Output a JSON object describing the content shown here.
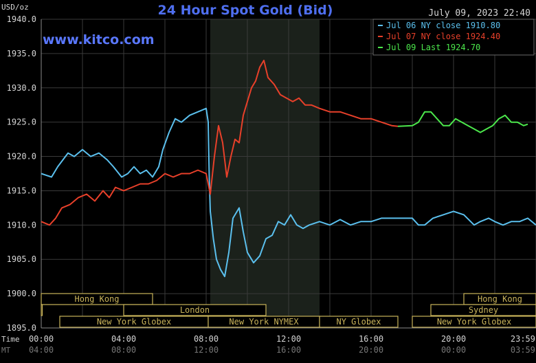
{
  "chart_data": {
    "type": "line",
    "title": "24 Hour Spot Gold (Bid)",
    "unit_label": "USD/oz",
    "watermark": "www.kitco.com",
    "timestamp": "July 09, 2023 22:40",
    "ylim": [
      1895,
      1940
    ],
    "y_ticks": [
      "1940.0",
      "1935.0",
      "1930.0",
      "1925.0",
      "1920.0",
      "1915.0",
      "1910.0",
      "1905.0",
      "1900.0",
      "1895.0"
    ],
    "xlim": [
      0,
      24
    ],
    "time_row_label": "Time",
    "time_row2_label": "MT",
    "x_ticks": [
      {
        "x": 0,
        "label": "00:00",
        "label2": "04:00"
      },
      {
        "x": 4,
        "label": "04:00",
        "label2": "08:00"
      },
      {
        "x": 8,
        "label": "08:00",
        "label2": "12:00"
      },
      {
        "x": 12,
        "label": "12:00",
        "label2": "16:00"
      },
      {
        "x": 16,
        "label": "16:00",
        "label2": "20:00"
      },
      {
        "x": 20,
        "label": "20:00",
        "label2": "00:00"
      },
      {
        "x": 23.983,
        "label": "23:59",
        "label2": "03:59"
      }
    ],
    "highlight_range": [
      8.2,
      13.5
    ],
    "colors": {
      "jul06": "#5bc0ee",
      "jul07": "#e8402a",
      "jul09": "#4ce84c",
      "grid": "#3a3a3a",
      "axis_text": "#d6d6d6",
      "title": "#4f6ff0",
      "watermark": "#5a78ff",
      "session": "#c9b35a",
      "highlight": "#1b211b"
    },
    "legend_position": "top-right",
    "sessions": [
      {
        "name": "Hong Kong",
        "row": 0,
        "start": 0,
        "end": 5.4
      },
      {
        "name": "Hong Kong",
        "row": 0,
        "start": 20.5,
        "end": 24
      },
      {
        "name": "London",
        "row": 1,
        "start": 0,
        "end": 0.05
      },
      {
        "name": "London",
        "row": 1,
        "start": 4,
        "end": 10.9
      },
      {
        "name": "Sydney",
        "row": 1,
        "start": 18.9,
        "end": 24
      },
      {
        "name": "New York Globex",
        "row": 2,
        "start": 0.9,
        "end": 8.1
      },
      {
        "name": "New York NYMEX",
        "row": 2,
        "start": 8.1,
        "end": 13.5
      },
      {
        "name": "NY Globex",
        "row": 2,
        "start": 13.5,
        "end": 17.3
      },
      {
        "name": "New York Globex",
        "row": 2,
        "start": 18,
        "end": 24
      }
    ],
    "series": [
      {
        "name": "Jul 06 NY close 1910.80",
        "key": "jul06",
        "x": [
          0,
          0.5,
          0.8,
          1.3,
          1.6,
          2.0,
          2.4,
          2.8,
          3.2,
          3.5,
          3.9,
          4.2,
          4.5,
          4.8,
          5.1,
          5.4,
          5.7,
          5.9,
          6.2,
          6.5,
          6.8,
          7.2,
          7.6,
          8.0,
          8.1,
          8.15,
          8.2,
          8.35,
          8.5,
          8.7,
          8.9,
          9.1,
          9.3,
          9.6,
          9.8,
          10.0,
          10.3,
          10.6,
          10.9,
          11.2,
          11.5,
          11.8,
          12.1,
          12.4,
          12.7,
          13.0,
          13.5,
          14.0,
          14.5,
          15.0,
          15.5,
          16.0,
          16.5,
          17.0,
          17.5,
          18.0,
          18.3,
          18.6,
          19.0,
          19.5,
          20.0,
          20.5,
          21.0,
          21.3,
          21.7,
          22.0,
          22.4,
          22.8,
          23.2,
          23.6,
          24.0
        ],
        "values": [
          1917.5,
          1917.0,
          1918.5,
          1920.5,
          1920.0,
          1921.0,
          1920.0,
          1920.5,
          1919.5,
          1918.5,
          1917.0,
          1917.5,
          1918.5,
          1917.5,
          1918.0,
          1917.0,
          1918.5,
          1921.0,
          1923.5,
          1925.5,
          1925.0,
          1926.0,
          1926.5,
          1927.0,
          1925.0,
          1917.0,
          1912.0,
          1908.0,
          1905.0,
          1903.5,
          1902.5,
          1906.0,
          1911.0,
          1912.5,
          1909.0,
          1906.0,
          1904.5,
          1905.5,
          1908.0,
          1908.5,
          1910.5,
          1910.0,
          1911.5,
          1910.0,
          1909.5,
          1910.0,
          1910.5,
          1910.0,
          1910.8,
          1910.0,
          1910.5,
          1910.5,
          1911.0,
          1911.0,
          1911.0,
          1911.0,
          1910.0,
          1910.0,
          1911.0,
          1911.5,
          1912.0,
          1911.5,
          1910.0,
          1910.5,
          1911.0,
          1910.5,
          1910.0,
          1910.5,
          1910.5,
          1911.0,
          1910.0
        ]
      },
      {
        "name": "Jul 07 NY close 1924.40",
        "key": "jul07",
        "x": [
          0,
          0.4,
          0.7,
          1.0,
          1.4,
          1.8,
          2.2,
          2.6,
          3.0,
          3.3,
          3.6,
          4.0,
          4.4,
          4.8,
          5.2,
          5.6,
          6.0,
          6.4,
          6.8,
          7.2,
          7.6,
          8.0,
          8.2,
          8.4,
          8.6,
          8.8,
          9.0,
          9.2,
          9.4,
          9.6,
          9.8,
          10.0,
          10.2,
          10.4,
          10.6,
          10.8,
          11.0,
          11.3,
          11.6,
          11.9,
          12.2,
          12.5,
          12.8,
          13.1,
          13.5,
          14.0,
          14.5,
          15.0,
          15.5,
          16.0,
          16.5,
          17.0,
          17.3
        ],
        "values": [
          1910.5,
          1910.0,
          1911.0,
          1912.5,
          1913.0,
          1914.0,
          1914.5,
          1913.5,
          1915.0,
          1914.0,
          1915.5,
          1915.0,
          1915.5,
          1916.0,
          1916.0,
          1916.5,
          1917.5,
          1917.0,
          1917.5,
          1917.5,
          1918.0,
          1917.5,
          1914.5,
          1920.0,
          1924.5,
          1922.0,
          1917.0,
          1920.0,
          1922.5,
          1922.0,
          1926.0,
          1928.0,
          1930.0,
          1931.0,
          1933.0,
          1934.0,
          1931.5,
          1930.5,
          1929.0,
          1928.5,
          1928.0,
          1928.5,
          1927.5,
          1927.5,
          1927.0,
          1926.5,
          1926.5,
          1926.0,
          1925.5,
          1925.5,
          1925.0,
          1924.5,
          1924.4
        ]
      },
      {
        "name": "Jul 09 Last 1924.70",
        "key": "jul09",
        "x": [
          17.3,
          18.0,
          18.3,
          18.6,
          18.9,
          19.2,
          19.5,
          19.8,
          20.1,
          20.4,
          20.7,
          21.0,
          21.3,
          21.6,
          21.9,
          22.2,
          22.5,
          22.8,
          23.1,
          23.4,
          23.6
        ],
        "values": [
          1924.4,
          1924.5,
          1925.0,
          1926.5,
          1926.5,
          1925.5,
          1924.5,
          1924.5,
          1925.5,
          1925.0,
          1924.5,
          1924.0,
          1923.5,
          1924.0,
          1924.5,
          1925.5,
          1926.0,
          1925.0,
          1925.0,
          1924.5,
          1924.7
        ]
      }
    ]
  }
}
